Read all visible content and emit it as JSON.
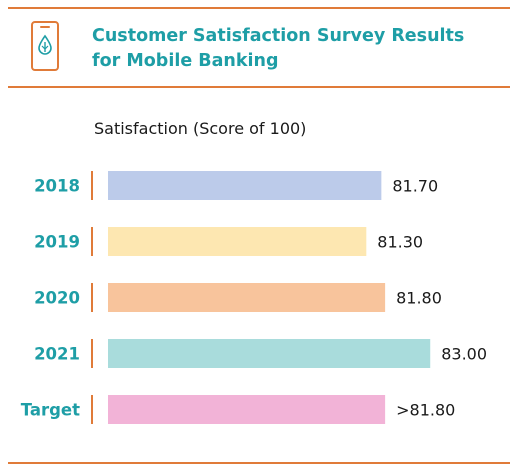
{
  "header": {
    "title_line1": "Customer Satisfaction Survey Results",
    "title_line2": "for Mobile Banking",
    "icon": "mobile-phone-droplet-icon"
  },
  "colors": {
    "accent": "#e07b39",
    "title": "#1e9ea6"
  },
  "chart_data": {
    "type": "bar",
    "orientation": "horizontal",
    "subtitle": "Satisfaction (Score of 100)",
    "categories": [
      "2018",
      "2019",
      "2020",
      "2021",
      "Target"
    ],
    "values": [
      81.7,
      81.3,
      81.8,
      83.0,
      81.8
    ],
    "value_labels": [
      "81.70",
      "81.30",
      "81.80",
      "83.00",
      ">81.80"
    ],
    "bar_colors": [
      "#bccbea",
      "#fde7b1",
      "#f8c49c",
      "#a9dcdc",
      "#f2b3d7"
    ],
    "grid": false
  }
}
